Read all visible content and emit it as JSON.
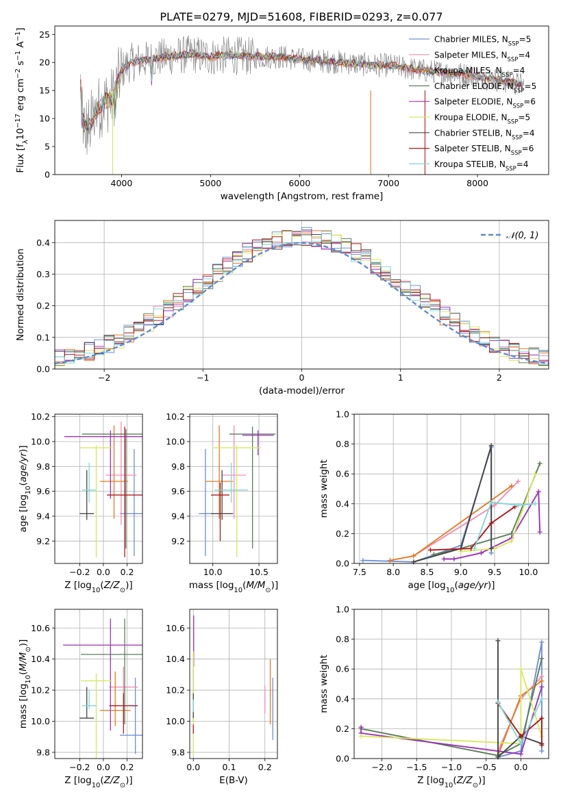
{
  "title": "PLATE=0279, MJD=51608, FIBERID=0293, z=0.077",
  "legend_models": [
    {
      "label": "Chabrier MILES, N",
      "nssp": "=5",
      "color": "#6b8fd6"
    },
    {
      "label": "Salpeter MILES, N",
      "nssp": "=4",
      "color": "#f08cb4"
    },
    {
      "label": "Kroupa MILES, N",
      "nssp": "=4",
      "color": "#e8781e"
    },
    {
      "label": "Chabrier ELODIE, N",
      "nssp": "=5",
      "color": "#5a7d5a"
    },
    {
      "label": "Salpeter ELODIE, N",
      "nssp": "=6",
      "color": "#9c30b8"
    },
    {
      "label": "Kroupa ELODIE, N",
      "nssp": "=5",
      "color": "#d6e85a"
    },
    {
      "label": "Chabrier STELIB, N",
      "nssp": "=4",
      "color": "#444444"
    },
    {
      "label": "Salpeter STELIB, N",
      "nssp": "=6",
      "color": "#b01818"
    },
    {
      "label": "Kroupa STELIB, N",
      "nssp": "=4",
      "color": "#7fd8d8"
    }
  ],
  "chart_data": [
    {
      "id": "spectrum",
      "type": "line",
      "xlabel": "wavelength [Angstrom, rest frame]",
      "ylabel": "Flux [f",
      "xlim": [
        3250,
        8800
      ],
      "ylim": [
        0,
        26.5
      ],
      "xticks": [
        4000,
        5000,
        6000,
        7000,
        8000
      ],
      "yticks": [
        0,
        5,
        10,
        15,
        20,
        25
      ],
      "grid": false,
      "legend": "top-right",
      "profile": [
        [
          3550,
          10
        ],
        [
          3620,
          8
        ],
        [
          3700,
          11
        ],
        [
          3800,
          13
        ],
        [
          3900,
          13.5
        ],
        [
          4000,
          18.5
        ],
        [
          4100,
          20
        ],
        [
          4300,
          20.5
        ],
        [
          4500,
          21
        ],
        [
          4800,
          21.5
        ],
        [
          5000,
          21
        ],
        [
          5200,
          21.3
        ],
        [
          5500,
          21
        ],
        [
          5800,
          21
        ],
        [
          6000,
          20.5
        ],
        [
          6300,
          20.2
        ],
        [
          6500,
          20
        ],
        [
          6800,
          19.5
        ],
        [
          7000,
          19.5
        ],
        [
          7200,
          19
        ],
        [
          7400,
          18.5
        ],
        [
          7800,
          18
        ],
        [
          8200,
          17
        ],
        [
          8500,
          16
        ]
      ]
    },
    {
      "id": "residuals",
      "type": "area",
      "xlabel": "(data-model)/error",
      "ylabel": "Normed distribution",
      "xlim": [
        -2.5,
        2.5
      ],
      "ylim": [
        0,
        0.47
      ],
      "xticks": [
        -2,
        -1,
        0,
        1,
        2
      ],
      "yticks": [
        0.0,
        0.1,
        0.2,
        0.3,
        0.4
      ],
      "grid": true,
      "legend": "top-right",
      "reference_label": "𝒩(0, 1)",
      "bins": 50
    },
    {
      "id": "age_vs_Z",
      "type": "scatter",
      "xlabel": "Z [log",
      "ylabel": "age  [log",
      "xlim": [
        -0.41,
        0.33
      ],
      "ylim": [
        9.02,
        10.22
      ],
      "xticks": [
        -0.2,
        0.0,
        0.2
      ],
      "yticks": [
        9.2,
        9.4,
        9.6,
        9.8,
        10.0,
        10.2
      ],
      "points": [
        {
          "x": 0.26,
          "y": 9.42,
          "xe": 0.12,
          "yel": 0.34,
          "yeh": 0.52,
          "color": "#6b8fd6"
        },
        {
          "x": 0.15,
          "y": 9.73,
          "xe": 0.13,
          "yel": 0.4,
          "yeh": 0.43,
          "color": "#f08cb4"
        },
        {
          "x": 0.09,
          "y": 9.68,
          "xe": 0.12,
          "yel": 0.3,
          "yeh": 0.45,
          "color": "#e8781e"
        },
        {
          "x": 0.19,
          "y": 10.06,
          "xe": 0.37,
          "yel": 0.92,
          "yeh": 0.04,
          "color": "#5a7d5a"
        },
        {
          "x": 0.06,
          "y": 10.04,
          "xe": 0.39,
          "yel": 0.5,
          "yeh": 0.05,
          "color": "#9c30b8"
        },
        {
          "x": -0.06,
          "y": 9.95,
          "xe": 0.14,
          "yel": 0.88,
          "yeh": 0.02,
          "color": "#d6e85a"
        },
        {
          "x": -0.14,
          "y": 9.42,
          "xe": 0.06,
          "yel": 0.05,
          "yeh": 0.35,
          "color": "#444444"
        },
        {
          "x": 0.18,
          "y": 9.57,
          "xe": 0.15,
          "yel": 0.5,
          "yeh": 0.55,
          "color": "#b01818"
        },
        {
          "x": -0.12,
          "y": 9.61,
          "xe": 0.06,
          "yel": 0.1,
          "yeh": 0.22,
          "color": "#7fd8d8"
        }
      ]
    },
    {
      "id": "age_vs_mass",
      "type": "scatter",
      "xlabel": "mass [log",
      "ylabel": "",
      "xlim": [
        9.75,
        10.7
      ],
      "ylim": [
        9.02,
        10.22
      ],
      "xticks": [
        10.0,
        10.5
      ],
      "yticks": [
        9.2,
        9.4,
        9.6,
        9.8,
        10.0,
        10.2
      ],
      "points": [
        {
          "x": 9.92,
          "y": 9.42,
          "xe": 0.07,
          "yel": 0.34,
          "yeh": 0.52,
          "color": "#6b8fd6"
        },
        {
          "x": 10.23,
          "y": 9.73,
          "xe": 0.13,
          "yel": 0.35,
          "yeh": 0.4,
          "color": "#f08cb4"
        },
        {
          "x": 10.07,
          "y": 9.68,
          "xe": 0.15,
          "yel": 0.3,
          "yeh": 0.45,
          "color": "#e8781e"
        },
        {
          "x": 10.43,
          "y": 10.06,
          "xe": 0.25,
          "yel": 0.92,
          "yeh": 0.06,
          "color": "#5a7d5a"
        },
        {
          "x": 10.49,
          "y": 10.05,
          "xe": 0.17,
          "yel": 0.16,
          "yeh": 0.04,
          "color": "#9c30b8"
        },
        {
          "x": 10.26,
          "y": 9.95,
          "xe": 0.26,
          "yel": 0.88,
          "yeh": 0.02,
          "color": "#d6e85a"
        },
        {
          "x": 10.1,
          "y": 9.42,
          "xe": 0.12,
          "yel": 0.05,
          "yeh": 0.35,
          "color": "#444444"
        },
        {
          "x": 10.08,
          "y": 9.57,
          "xe": 0.1,
          "yel": 0.37,
          "yeh": 0.1,
          "color": "#b01818"
        },
        {
          "x": 10.2,
          "y": 9.61,
          "xe": 0.18,
          "yel": 0.1,
          "yeh": 0.22,
          "color": "#7fd8d8"
        }
      ]
    },
    {
      "id": "weight_vs_age",
      "type": "line",
      "xlabel": "age  [log",
      "ylabel": "mass weight",
      "xlim": [
        7.42,
        10.3
      ],
      "ylim": [
        0,
        1.0
      ],
      "xticks": [
        7.5,
        8.0,
        8.5,
        9.0,
        9.5,
        10.0
      ],
      "yticks": [
        0.0,
        0.2,
        0.4,
        0.6,
        0.8,
        1.0
      ],
      "grid": true,
      "series": [
        {
          "color": "#6b8fd6",
          "points": [
            [
              7.55,
              0.02
            ],
            [
              8.3,
              0.01
            ],
            [
              9.0,
              0.12
            ],
            [
              9.45,
              0.78
            ],
            [
              9.45,
              0.07
            ]
          ]
        },
        {
          "color": "#f08cb4",
          "points": [
            [
              8.3,
              0.05
            ],
            [
              9.5,
              0.39
            ],
            [
              9.85,
              0.55
            ]
          ]
        },
        {
          "color": "#e8781e",
          "points": [
            [
              7.95,
              0.02
            ],
            [
              8.3,
              0.05
            ],
            [
              9.75,
              0.52
            ]
          ]
        },
        {
          "color": "#5a7d5a",
          "points": [
            [
              8.6,
              0.06
            ],
            [
              9.0,
              0.1
            ],
            [
              9.75,
              0.2
            ],
            [
              10.17,
              0.67
            ]
          ]
        },
        {
          "color": "#9c30b8",
          "points": [
            [
              8.75,
              0.03
            ],
            [
              8.9,
              0.03
            ],
            [
              9.3,
              0.07
            ],
            [
              9.75,
              0.17
            ],
            [
              10.15,
              0.48
            ],
            [
              10.17,
              0.21
            ]
          ]
        },
        {
          "color": "#d6e85a",
          "points": [
            [
              9.0,
              0.08
            ],
            [
              9.5,
              0.1
            ],
            [
              9.75,
              0.15
            ],
            [
              10.1,
              0.6
            ]
          ]
        },
        {
          "color": "#444444",
          "points": [
            [
              8.3,
              0.01
            ],
            [
              9.0,
              0.1
            ],
            [
              9.45,
              0.79
            ],
            [
              9.45,
              0.1
            ]
          ]
        },
        {
          "color": "#b01818",
          "points": [
            [
              8.55,
              0.09
            ],
            [
              9.15,
              0.1
            ],
            [
              9.45,
              0.27
            ],
            [
              9.8,
              0.38
            ]
          ]
        },
        {
          "color": "#7fd8d8",
          "points": [
            [
              9.2,
              0.1
            ],
            [
              9.45,
              0.41
            ],
            [
              9.85,
              0.39
            ],
            [
              10.1,
              0.4
            ]
          ]
        }
      ]
    },
    {
      "id": "mass_vs_Z",
      "type": "scatter",
      "xlabel": "Z [log",
      "ylabel": "mass [log",
      "xlim": [
        -0.41,
        0.33
      ],
      "ylim": [
        9.76,
        10.72
      ],
      "xticks": [
        -0.2,
        0.0,
        0.2
      ],
      "yticks": [
        9.8,
        10.0,
        10.2,
        10.4,
        10.6
      ],
      "points": [
        {
          "x": 0.27,
          "y": 9.91,
          "xe": 0.13,
          "yel": 0.12,
          "yeh": 0.37,
          "color": "#6b8fd6"
        },
        {
          "x": 0.17,
          "y": 10.22,
          "xe": 0.12,
          "yel": 0.23,
          "yeh": 0.13,
          "color": "#f08cb4"
        },
        {
          "x": 0.1,
          "y": 10.07,
          "xe": 0.13,
          "yel": 0.1,
          "yeh": 0.25,
          "color": "#e8781e"
        },
        {
          "x": 0.18,
          "y": 10.43,
          "xe": 0.37,
          "yel": 0.45,
          "yeh": 0.23,
          "color": "#5a7d5a"
        },
        {
          "x": 0.06,
          "y": 10.49,
          "xe": 0.4,
          "yel": 0.55,
          "yeh": 0.17,
          "color": "#9c30b8"
        },
        {
          "x": -0.06,
          "y": 10.26,
          "xe": 0.13,
          "yel": 0.5,
          "yeh": 0.05,
          "color": "#d6e85a"
        },
        {
          "x": -0.14,
          "y": 10.02,
          "xe": 0.06,
          "yel": 0.0,
          "yeh": 0.2,
          "color": "#444444"
        },
        {
          "x": 0.17,
          "y": 10.1,
          "xe": 0.12,
          "yel": 0.18,
          "yeh": 0.08,
          "color": "#b01818"
        },
        {
          "x": -0.12,
          "y": 10.1,
          "xe": 0.06,
          "yel": 0.02,
          "yeh": 0.1,
          "color": "#7fd8d8"
        }
      ]
    },
    {
      "id": "mass_vs_ebv",
      "type": "scatter",
      "xlabel": "E(B-V)",
      "ylabel": "",
      "xlim": [
        -0.01,
        0.235
      ],
      "ylim": [
        9.76,
        10.72
      ],
      "xticks": [
        0.0,
        0.1,
        0.2
      ],
      "yticks": [
        9.8,
        10.0,
        10.2,
        10.4,
        10.6
      ],
      "points": [
        {
          "x": 0.222,
          "y": 10.1,
          "xe": 0.0,
          "yel": 0.22,
          "yeh": 0.18,
          "color": "#6b8fd6"
        },
        {
          "x": 0.2,
          "y": 10.23,
          "xe": 0.0,
          "yel": 0.18,
          "yeh": 0.0,
          "color": "#f08cb4"
        },
        {
          "x": 0.215,
          "y": 10.2,
          "xe": 0.0,
          "yel": 0.22,
          "yeh": 0.2,
          "color": "#e8781e"
        },
        {
          "x": 0.0,
          "y": 10.2,
          "xe": 0.0,
          "yel": 0.2,
          "yeh": 0.2,
          "color": "#5a7d5a"
        },
        {
          "x": 0.001,
          "y": 10.55,
          "xe": 0.0,
          "yel": 0.2,
          "yeh": 0.13,
          "color": "#9c30b8"
        },
        {
          "x": 0.0,
          "y": 10.1,
          "xe": 0.0,
          "yel": 0.32,
          "yeh": 0.35,
          "color": "#d6e85a"
        },
        {
          "x": 0.0,
          "y": 10.1,
          "xe": 0.0,
          "yel": 0.08,
          "yeh": 0.08,
          "color": "#444444"
        },
        {
          "x": 0.0,
          "y": 9.95,
          "xe": 0.0,
          "yel": 0.03,
          "yeh": 0.03,
          "color": "#b01818"
        },
        {
          "x": 0.0,
          "y": 10.1,
          "xe": 0.0,
          "yel": 0.04,
          "yeh": 0.04,
          "color": "#7fd8d8"
        }
      ]
    },
    {
      "id": "weight_vs_Z",
      "type": "line",
      "xlabel": "Z [log",
      "ylabel": "mass weight",
      "xlim": [
        -2.4,
        0.4
      ],
      "ylim": [
        0,
        1.0
      ],
      "xticks": [
        -2.0,
        -1.5,
        -1.0,
        -0.5,
        0.0
      ],
      "yticks": [
        0.0,
        0.2,
        0.4,
        0.6,
        0.8,
        1.0
      ],
      "grid": true,
      "series": [
        {
          "color": "#6b8fd6",
          "points": [
            [
              -0.33,
              0.01
            ],
            [
              0.0,
              0.05
            ],
            [
              0.3,
              0.78
            ],
            [
              0.3,
              0.05
            ]
          ]
        },
        {
          "color": "#f08cb4",
          "points": [
            [
              -0.33,
              0.05
            ],
            [
              0.0,
              0.4
            ],
            [
              0.3,
              0.55
            ]
          ]
        },
        {
          "color": "#e8781e",
          "points": [
            [
              -0.33,
              0.02
            ],
            [
              0.0,
              0.42
            ],
            [
              0.3,
              0.52
            ]
          ]
        },
        {
          "color": "#5a7d5a",
          "points": [
            [
              -2.3,
              0.2
            ],
            [
              -0.33,
              0.02
            ],
            [
              0.0,
              0.1
            ],
            [
              0.3,
              0.67
            ]
          ]
        },
        {
          "color": "#9c30b8",
          "points": [
            [
              -2.3,
              0.21
            ],
            [
              -2.3,
              0.17
            ],
            [
              0.0,
              0.03
            ],
            [
              0.3,
              0.48
            ]
          ]
        },
        {
          "color": "#d6e85a",
          "points": [
            [
              -2.3,
              0.15
            ],
            [
              0.0,
              0.1
            ],
            [
              0.0,
              0.6
            ],
            [
              0.3,
              0.15
            ]
          ]
        },
        {
          "color": "#444444",
          "points": [
            [
              -0.33,
              0.79
            ],
            [
              -0.33,
              0.01
            ],
            [
              0.0,
              0.15
            ],
            [
              0.3,
              0.1
            ]
          ]
        },
        {
          "color": "#b01818",
          "points": [
            [
              -0.33,
              0.37
            ],
            [
              0.0,
              0.15
            ],
            [
              0.3,
              0.27
            ],
            [
              0.3,
              0.09
            ]
          ]
        },
        {
          "color": "#7fd8d8",
          "points": [
            [
              -0.33,
              0.38
            ],
            [
              0.0,
              0.1
            ],
            [
              0.3,
              0.4
            ]
          ]
        }
      ]
    }
  ]
}
